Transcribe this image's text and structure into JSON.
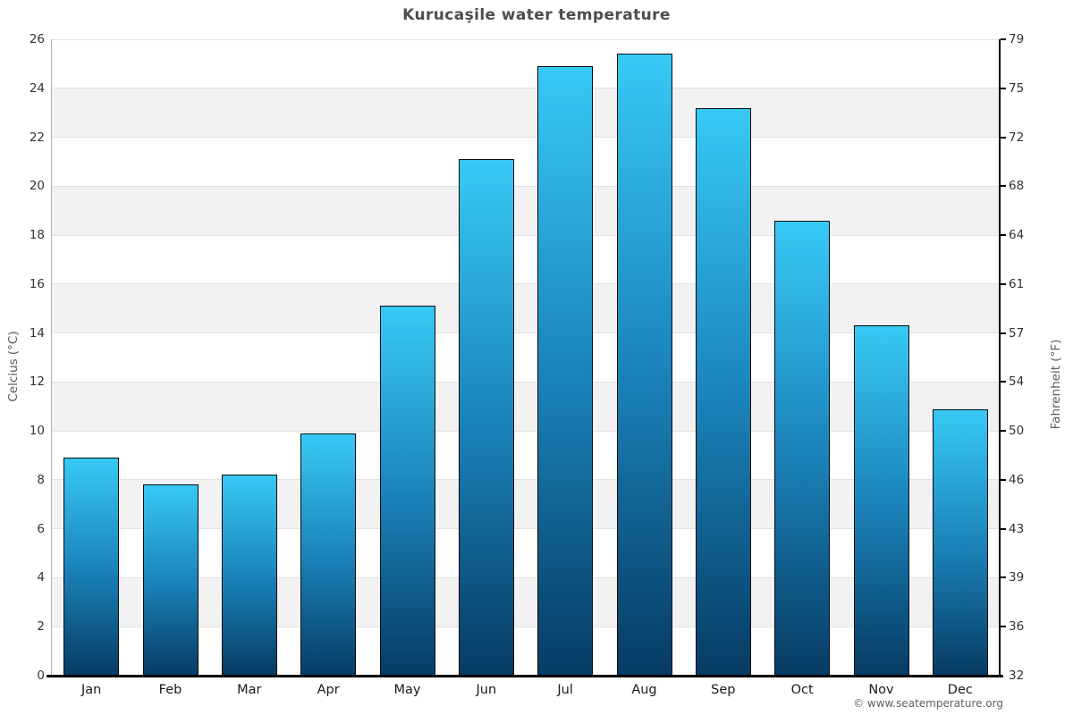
{
  "header": {
    "title": "Kurucaşile water temperature"
  },
  "footer": {
    "credit": "© www.seatemperature.org"
  },
  "chart_data": {
    "type": "bar",
    "title": "Kurucaşile water temperature",
    "categories": [
      "Jan",
      "Feb",
      "Mar",
      "Apr",
      "May",
      "Jun",
      "Jul",
      "Aug",
      "Sep",
      "Oct",
      "Nov",
      "Dec"
    ],
    "values": [
      8.9,
      7.8,
      8.2,
      9.9,
      15.1,
      21.1,
      24.9,
      25.4,
      23.2,
      18.6,
      14.3,
      10.9
    ],
    "series": [
      {
        "name": "Water temperature (°C)",
        "values": [
          8.9,
          7.8,
          8.2,
          9.9,
          15.1,
          21.1,
          24.9,
          25.4,
          23.2,
          18.6,
          14.3,
          10.9
        ]
      }
    ],
    "xlabel": "",
    "ylabel_left": "Celcius (°C)",
    "ylabel_right": "Fahrenheit (°F)",
    "ylim_celsius": [
      0,
      26
    ],
    "yticks_celsius": [
      0,
      2,
      4,
      6,
      8,
      10,
      12,
      14,
      16,
      18,
      20,
      22,
      24,
      26
    ],
    "yticks_fahrenheit_labels": [
      "32",
      "36",
      "39",
      "43",
      "46",
      "50",
      "54",
      "57",
      "61",
      "64",
      "68",
      "72",
      "75",
      "79"
    ],
    "grid": "horizontal-bands-alternating",
    "legend": "none",
    "colors": {
      "bar_gradient_top": "#38c9f5",
      "bar_gradient_mid": "#1b84bb",
      "bar_gradient_bottom": "#073b63",
      "bar_border": "#0b0b0b",
      "band_gray": "#f2f2f2",
      "band_white": "#ffffff",
      "gridline": "#e2e2e2",
      "axis_line": "#000000",
      "left_spine": "#b2b2b2",
      "title_color": "#4d4d4d",
      "tick_label_color": "#333333"
    }
  }
}
